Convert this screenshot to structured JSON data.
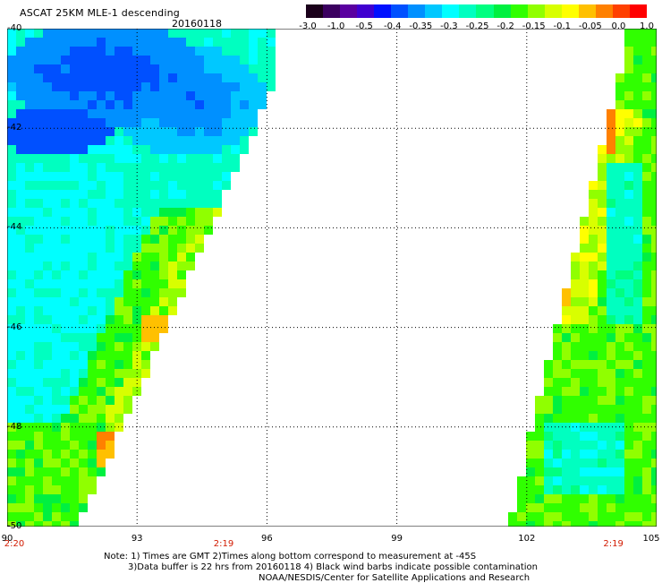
{
  "header": {
    "title": "ASCAT 25KM MLE-1 descending",
    "date": "20160118"
  },
  "colorbar": {
    "colors": [
      "#1a001a",
      "#3b0060",
      "#5a00a0",
      "#4000d0",
      "#0010ff",
      "#0050ff",
      "#0090ff",
      "#00c8ff",
      "#00ffff",
      "#00ffc0",
      "#00ff80",
      "#00f040",
      "#30ff00",
      "#90ff00",
      "#d8ff00",
      "#ffff00",
      "#ffc000",
      "#ff8000",
      "#ff4000",
      "#ff0000"
    ],
    "tick_labels": [
      "-3.0",
      "-1.0",
      "-0.5",
      "-0.4",
      "-0.35",
      "-0.3",
      "-0.25",
      "-0.2",
      "-0.15",
      "-0.1",
      "-0.05",
      "0.0",
      "1.0"
    ]
  },
  "axes": {
    "lon_range": [
      90,
      105
    ],
    "lat_range": [
      -50,
      -40
    ],
    "lon_ticks": [
      "90",
      "93",
      "96",
      "99",
      "102",
      "105"
    ],
    "lat_ticks": [
      "-40",
      "-42",
      "-44",
      "-46",
      "-48",
      "-50"
    ],
    "grid": "dotted"
  },
  "times": [
    {
      "text": "2:20",
      "lon": 90
    },
    {
      "text": "2:19",
      "lon": 95
    },
    {
      "text": "2:19",
      "lon": 104
    }
  ],
  "notes": {
    "line1": "Note: 1) Times are GMT 2)Times along bottom correspond to measurement at -45S",
    "line2": "3)Data buffer is 22 hrs from 20160118 4) Black wind barbs indicate possible contamination",
    "line3": "NOAA/NESDIS/Center for Satellite Applications and Research"
  }
}
